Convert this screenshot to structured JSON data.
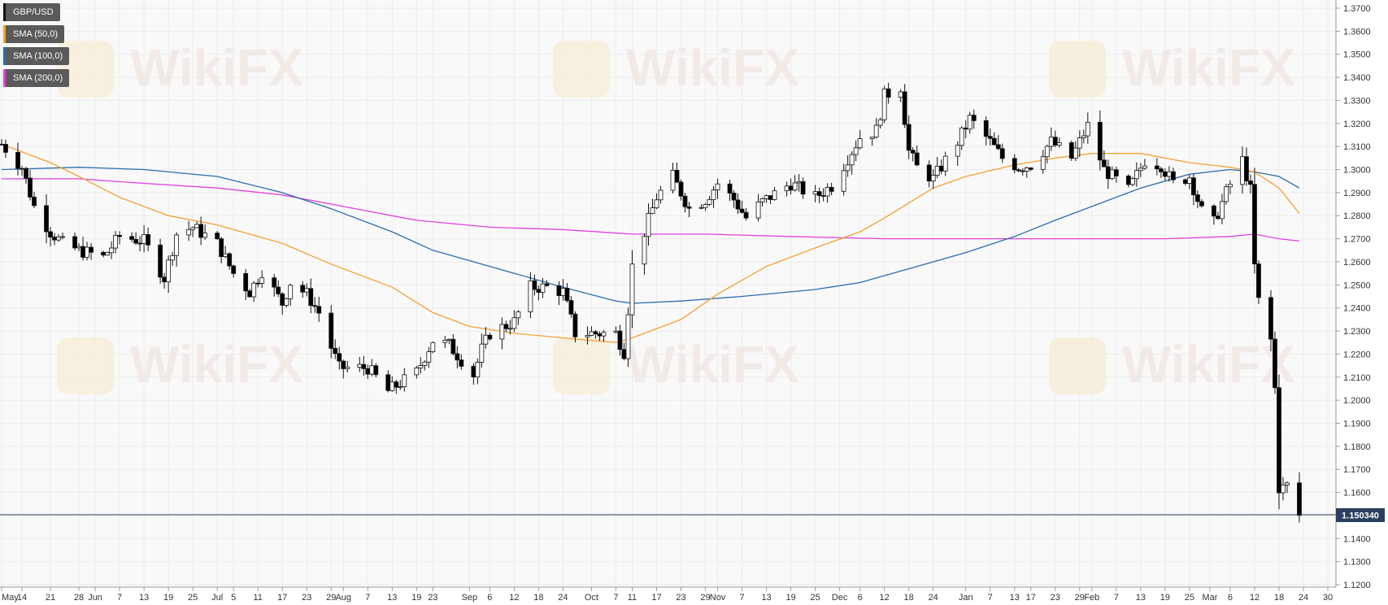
{
  "legend": {
    "instrument": {
      "label": "GBP/USD",
      "color": "#000000"
    },
    "sma50": {
      "label": "SMA (50,0)",
      "color": "#f5a033"
    },
    "sma100": {
      "label": "SMA (100,0)",
      "color": "#2b6cb0"
    },
    "sma200": {
      "label": "SMA (200,0)",
      "color": "#e040e0"
    }
  },
  "watermark": {
    "text": "WikiFX"
  },
  "current_price": {
    "label": "1.150340",
    "value": 1.15034
  },
  "colors": {
    "up": "#ffffff",
    "down": "#000000",
    "grid": "#ececec",
    "price_line": "#2a4060",
    "plot_bg": "#f9f9f9"
  },
  "chart_data": {
    "type": "candlestick",
    "title": "",
    "ylim": [
      1.12,
      1.37
    ],
    "yticks": [
      "1.3700",
      "1.3600",
      "1.3500",
      "1.3400",
      "1.3300",
      "1.3200",
      "1.3100",
      "1.3000",
      "1.2900",
      "1.2800",
      "1.2700",
      "1.2600",
      "1.2500",
      "1.2400",
      "1.2300",
      "1.2200",
      "1.2100",
      "1.2000",
      "1.1900",
      "1.1800",
      "1.1700",
      "1.1600",
      "1.1500",
      "1.1400",
      "1.1300",
      "1.1200"
    ],
    "x_start": "2019-05-09",
    "x_end": "2020-03-31",
    "x_ticks": [
      {
        "date": "2019-05-09",
        "label": "May"
      },
      {
        "date": "2019-05-14",
        "label": "14"
      },
      {
        "date": "2019-05-21",
        "label": "21"
      },
      {
        "date": "2019-05-28",
        "label": "28"
      },
      {
        "date": "2019-06-01",
        "label": "Jun"
      },
      {
        "date": "2019-06-07",
        "label": "7"
      },
      {
        "date": "2019-06-13",
        "label": "13"
      },
      {
        "date": "2019-06-19",
        "label": "19"
      },
      {
        "date": "2019-06-25",
        "label": "25"
      },
      {
        "date": "2019-07-01",
        "label": "Jul"
      },
      {
        "date": "2019-07-05",
        "label": "5"
      },
      {
        "date": "2019-07-11",
        "label": "11"
      },
      {
        "date": "2019-07-17",
        "label": "17"
      },
      {
        "date": "2019-07-23",
        "label": "23"
      },
      {
        "date": "2019-07-29",
        "label": "29"
      },
      {
        "date": "2019-08-01",
        "label": "Aug"
      },
      {
        "date": "2019-08-07",
        "label": "7"
      },
      {
        "date": "2019-08-13",
        "label": "13"
      },
      {
        "date": "2019-08-19",
        "label": "19"
      },
      {
        "date": "2019-08-23",
        "label": "23"
      },
      {
        "date": "2019-09-01",
        "label": "Sep"
      },
      {
        "date": "2019-09-06",
        "label": "6"
      },
      {
        "date": "2019-09-12",
        "label": "12"
      },
      {
        "date": "2019-09-18",
        "label": "18"
      },
      {
        "date": "2019-09-24",
        "label": "24"
      },
      {
        "date": "2019-10-01",
        "label": "Oct"
      },
      {
        "date": "2019-10-07",
        "label": "7"
      },
      {
        "date": "2019-10-11",
        "label": "11"
      },
      {
        "date": "2019-10-17",
        "label": "17"
      },
      {
        "date": "2019-10-23",
        "label": "23"
      },
      {
        "date": "2019-10-29",
        "label": "29"
      },
      {
        "date": "2019-11-01",
        "label": "Nov"
      },
      {
        "date": "2019-11-07",
        "label": "7"
      },
      {
        "date": "2019-11-13",
        "label": "13"
      },
      {
        "date": "2019-11-19",
        "label": "19"
      },
      {
        "date": "2019-11-25",
        "label": "25"
      },
      {
        "date": "2019-12-01",
        "label": "Dec"
      },
      {
        "date": "2019-12-06",
        "label": "6"
      },
      {
        "date": "2019-12-12",
        "label": "12"
      },
      {
        "date": "2019-12-18",
        "label": "18"
      },
      {
        "date": "2019-12-24",
        "label": "24"
      },
      {
        "date": "2020-01-01",
        "label": "Jan"
      },
      {
        "date": "2020-01-07",
        "label": "7"
      },
      {
        "date": "2020-01-13",
        "label": "13"
      },
      {
        "date": "2020-01-17",
        "label": "17"
      },
      {
        "date": "2020-01-23",
        "label": "23"
      },
      {
        "date": "2020-01-29",
        "label": "29"
      },
      {
        "date": "2020-02-01",
        "label": "Feb"
      },
      {
        "date": "2020-02-07",
        "label": "7"
      },
      {
        "date": "2020-02-13",
        "label": "13"
      },
      {
        "date": "2020-02-19",
        "label": "19"
      },
      {
        "date": "2020-02-25",
        "label": "25"
      },
      {
        "date": "2020-03-01",
        "label": "Mar"
      },
      {
        "date": "2020-03-06",
        "label": "6"
      },
      {
        "date": "2020-03-12",
        "label": "12"
      },
      {
        "date": "2020-03-18",
        "label": "18"
      },
      {
        "date": "2020-03-24",
        "label": "24"
      },
      {
        "date": "2020-03-30",
        "label": "30"
      }
    ],
    "price_path": [
      [
        "2019-05-09",
        1.311
      ],
      [
        "2019-05-14",
        1.301
      ],
      [
        "2019-05-17",
        1.284
      ],
      [
        "2019-05-21",
        1.273
      ],
      [
        "2019-05-24",
        1.268
      ],
      [
        "2019-05-28",
        1.265
      ],
      [
        "2019-06-03",
        1.262
      ],
      [
        "2019-06-07",
        1.271
      ],
      [
        "2019-06-13",
        1.269
      ],
      [
        "2019-06-18",
        1.253
      ],
      [
        "2019-06-21",
        1.272
      ],
      [
        "2019-06-25",
        1.275
      ],
      [
        "2019-07-01",
        1.268
      ],
      [
        "2019-07-05",
        1.255
      ],
      [
        "2019-07-09",
        1.247
      ],
      [
        "2019-07-12",
        1.256
      ],
      [
        "2019-07-17",
        1.242
      ],
      [
        "2019-07-19",
        1.251
      ],
      [
        "2019-07-23",
        1.246
      ],
      [
        "2019-07-26",
        1.238
      ],
      [
        "2019-07-29",
        1.223
      ],
      [
        "2019-07-31",
        1.214
      ],
      [
        "2019-08-07",
        1.214
      ],
      [
        "2019-08-12",
        1.204
      ],
      [
        "2019-08-19",
        1.212
      ],
      [
        "2019-08-23",
        1.226
      ],
      [
        "2019-08-27",
        1.224
      ],
      [
        "2019-09-02",
        1.211
      ],
      [
        "2019-09-04",
        1.222
      ],
      [
        "2019-09-06",
        1.229
      ],
      [
        "2019-09-12",
        1.234
      ],
      [
        "2019-09-16",
        1.249
      ],
      [
        "2019-09-20",
        1.249
      ],
      [
        "2019-09-24",
        1.247
      ],
      [
        "2019-09-27",
        1.229
      ],
      [
        "2019-10-01",
        1.229
      ],
      [
        "2019-10-07",
        1.229
      ],
      [
        "2019-10-09",
        1.221
      ],
      [
        "2019-10-11",
        1.258
      ],
      [
        "2019-10-17",
        1.288
      ],
      [
        "2019-10-21",
        1.297
      ],
      [
        "2019-10-25",
        1.283
      ],
      [
        "2019-10-29",
        1.287
      ],
      [
        "2019-11-01",
        1.294
      ],
      [
        "2019-11-05",
        1.287
      ],
      [
        "2019-11-08",
        1.279
      ],
      [
        "2019-11-12",
        1.286
      ],
      [
        "2019-11-19",
        1.294
      ],
      [
        "2019-11-25",
        1.288
      ],
      [
        "2019-11-29",
        1.293
      ],
      [
        "2019-12-03",
        1.305
      ],
      [
        "2019-12-06",
        1.314
      ],
      [
        "2019-12-10",
        1.317
      ],
      [
        "2019-12-12",
        1.332
      ],
      [
        "2019-12-13",
        1.333
      ],
      [
        "2019-12-16",
        1.336
      ],
      [
        "2019-12-18",
        1.308
      ],
      [
        "2019-12-20",
        1.301
      ],
      [
        "2019-12-24",
        1.296
      ],
      [
        "2019-12-30",
        1.312
      ],
      [
        "2020-01-02",
        1.322
      ],
      [
        "2020-01-07",
        1.312
      ],
      [
        "2020-01-10",
        1.305
      ],
      [
        "2020-01-14",
        1.301
      ],
      [
        "2020-01-17",
        1.302
      ],
      [
        "2020-01-22",
        1.312
      ],
      [
        "2020-01-27",
        1.305
      ],
      [
        "2020-01-31",
        1.319
      ],
      [
        "2020-02-04",
        1.3
      ],
      [
        "2020-02-10",
        1.291
      ],
      [
        "2020-02-14",
        1.304
      ],
      [
        "2020-02-18",
        1.302
      ],
      [
        "2020-02-21",
        1.294
      ],
      [
        "2020-02-25",
        1.297
      ],
      [
        "2020-02-28",
        1.282
      ],
      [
        "2020-03-02",
        1.277
      ],
      [
        "2020-03-05",
        1.29
      ],
      [
        "2020-03-09",
        1.304
      ],
      [
        "2020-03-11",
        1.291
      ],
      [
        "2020-03-12",
        1.258
      ],
      [
        "2020-03-13",
        1.243
      ],
      [
        "2020-03-16",
        1.226
      ],
      [
        "2020-03-17",
        1.205
      ],
      [
        "2020-03-18",
        1.162
      ],
      [
        "2020-03-19",
        1.162
      ],
      [
        "2020-03-20",
        1.163
      ],
      [
        "2020-03-23",
        1.15
      ]
    ],
    "sma50": [
      [
        "2019-05-09",
        1.311
      ],
      [
        "2019-05-21",
        1.303
      ],
      [
        "2019-05-28",
        1.297
      ],
      [
        "2019-06-07",
        1.288
      ],
      [
        "2019-06-19",
        1.28
      ],
      [
        "2019-07-01",
        1.276
      ],
      [
        "2019-07-17",
        1.268
      ],
      [
        "2019-07-29",
        1.259
      ],
      [
        "2019-08-13",
        1.249
      ],
      [
        "2019-08-23",
        1.238
      ],
      [
        "2019-09-01",
        1.232
      ],
      [
        "2019-09-12",
        1.229
      ],
      [
        "2019-09-24",
        1.227
      ],
      [
        "2019-10-07",
        1.225
      ],
      [
        "2019-10-11",
        1.227
      ],
      [
        "2019-10-23",
        1.235
      ],
      [
        "2019-11-01",
        1.246
      ],
      [
        "2019-11-13",
        1.258
      ],
      [
        "2019-11-25",
        1.266
      ],
      [
        "2019-12-06",
        1.273
      ],
      [
        "2019-12-12",
        1.279
      ],
      [
        "2019-12-24",
        1.292
      ],
      [
        "2020-01-01",
        1.297
      ],
      [
        "2020-01-13",
        1.302
      ],
      [
        "2020-01-23",
        1.305
      ],
      [
        "2020-02-01",
        1.307
      ],
      [
        "2020-02-13",
        1.307
      ],
      [
        "2020-02-25",
        1.303
      ],
      [
        "2020-03-06",
        1.301
      ],
      [
        "2020-03-12",
        1.299
      ],
      [
        "2020-03-18",
        1.292
      ],
      [
        "2020-03-23",
        1.281
      ]
    ],
    "sma100": [
      [
        "2019-05-09",
        1.3
      ],
      [
        "2019-05-28",
        1.301
      ],
      [
        "2019-06-13",
        1.3
      ],
      [
        "2019-07-01",
        1.297
      ],
      [
        "2019-07-17",
        1.29
      ],
      [
        "2019-07-29",
        1.283
      ],
      [
        "2019-08-13",
        1.273
      ],
      [
        "2019-08-23",
        1.265
      ],
      [
        "2019-09-06",
        1.258
      ],
      [
        "2019-09-24",
        1.249
      ],
      [
        "2019-10-07",
        1.243
      ],
      [
        "2019-10-11",
        1.242
      ],
      [
        "2019-10-23",
        1.243
      ],
      [
        "2019-11-07",
        1.245
      ],
      [
        "2019-11-25",
        1.248
      ],
      [
        "2019-12-06",
        1.251
      ],
      [
        "2019-12-18",
        1.257
      ],
      [
        "2020-01-01",
        1.264
      ],
      [
        "2020-01-13",
        1.271
      ],
      [
        "2020-01-23",
        1.278
      ],
      [
        "2020-02-01",
        1.284
      ],
      [
        "2020-02-13",
        1.292
      ],
      [
        "2020-02-25",
        1.298
      ],
      [
        "2020-03-06",
        1.3
      ],
      [
        "2020-03-12",
        1.299
      ],
      [
        "2020-03-18",
        1.297
      ],
      [
        "2020-03-23",
        1.292
      ]
    ],
    "sma200": [
      [
        "2019-05-09",
        1.296
      ],
      [
        "2019-05-28",
        1.296
      ],
      [
        "2019-06-13",
        1.294
      ],
      [
        "2019-07-01",
        1.292
      ],
      [
        "2019-07-17",
        1.289
      ],
      [
        "2019-08-01",
        1.284
      ],
      [
        "2019-08-19",
        1.278
      ],
      [
        "2019-09-06",
        1.275
      ],
      [
        "2019-09-24",
        1.274
      ],
      [
        "2019-10-11",
        1.272
      ],
      [
        "2019-10-29",
        1.272
      ],
      [
        "2019-11-19",
        1.271
      ],
      [
        "2019-12-12",
        1.27
      ],
      [
        "2020-01-07",
        1.27
      ],
      [
        "2020-02-01",
        1.27
      ],
      [
        "2020-02-19",
        1.27
      ],
      [
        "2020-03-06",
        1.271
      ],
      [
        "2020-03-12",
        1.272
      ],
      [
        "2020-03-18",
        1.27
      ],
      [
        "2020-03-23",
        1.269
      ]
    ]
  }
}
